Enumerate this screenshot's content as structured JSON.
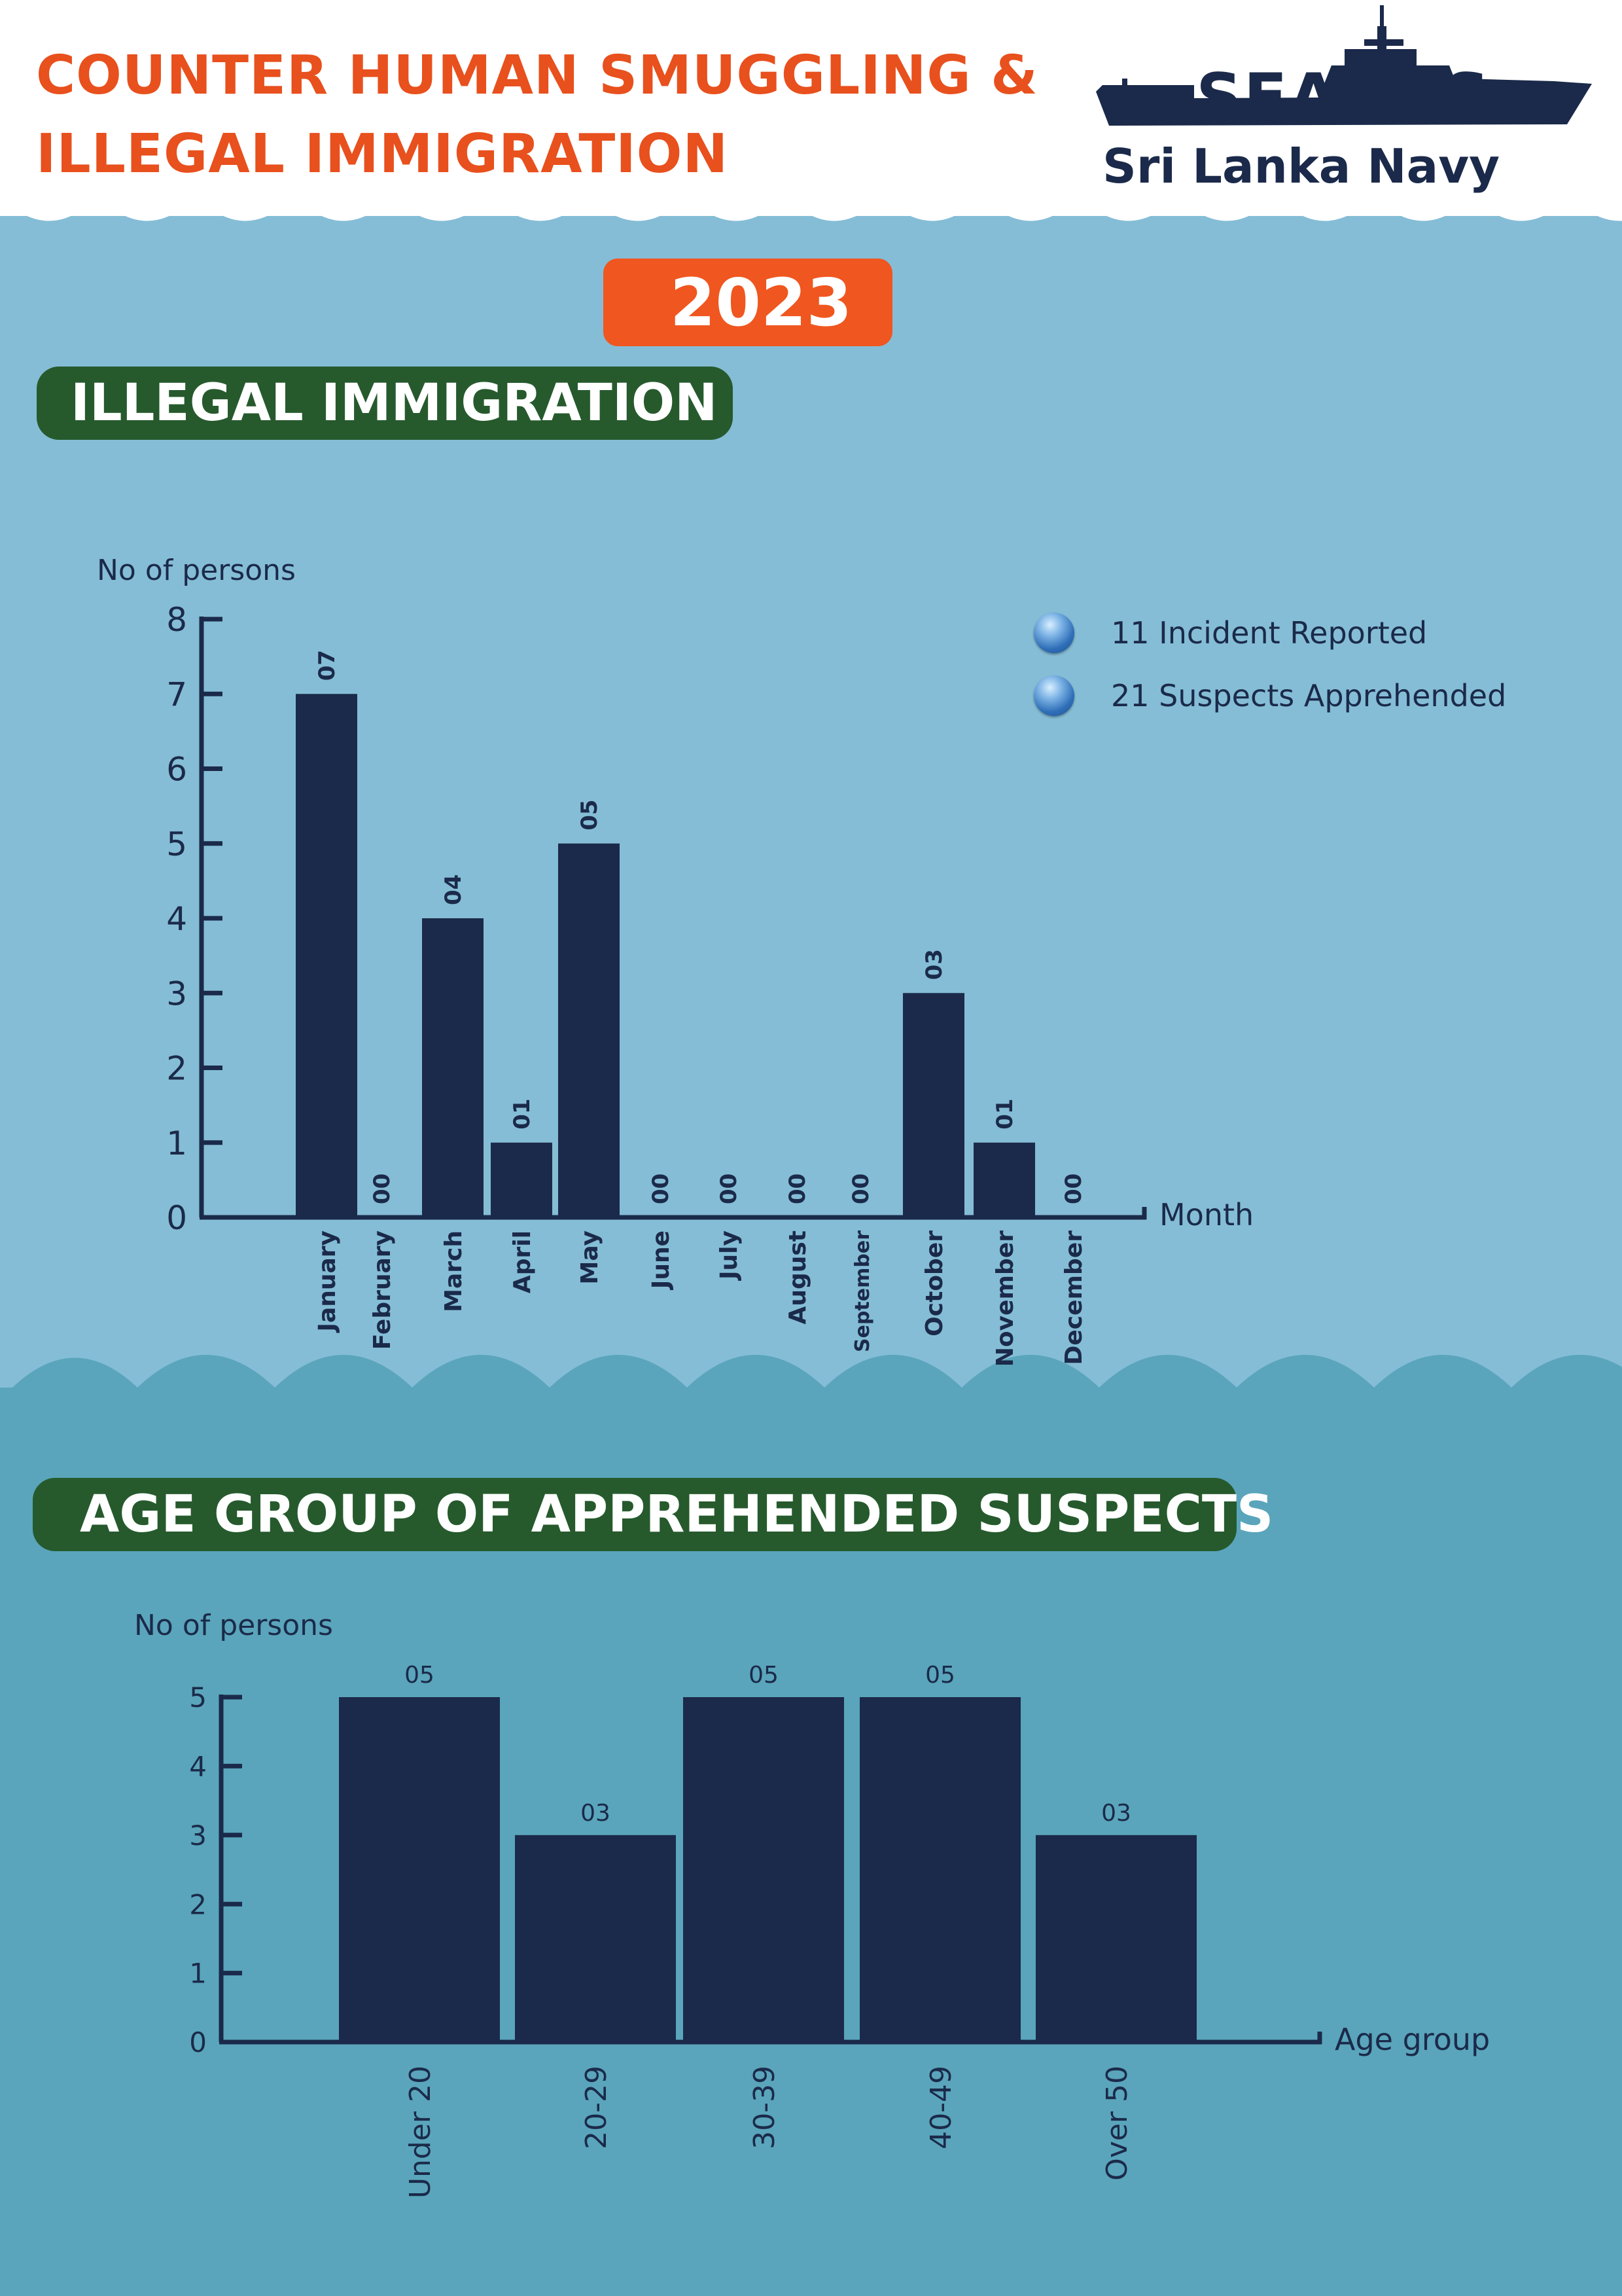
{
  "header": {
    "title_line1": "COUNTER HUMAN SMUGGLING  &",
    "title_line2": "ILLEGAL IMMIGRATION",
    "logo_word": "SEAOPS",
    "logo_subtitle": "Sri Lanka Navy",
    "logo_icon": "ship-silhouette-icon"
  },
  "year": "2023",
  "colors": {
    "title_orange": "#e8501d",
    "badge_orange": "#f0561f",
    "banner_green": "#265a2d",
    "navy": "#1b2a4a",
    "sea_light": "#85bdd6",
    "sea_dark": "#5aa5bb"
  },
  "section1": {
    "banner": "ILLEGAL IMMIGRATION",
    "legend": [
      {
        "icon": "blue-sphere-icon",
        "text": "11 Incident Reported"
      },
      {
        "icon": "blue-sphere-icon",
        "text": "21 Suspects Apprehended"
      }
    ]
  },
  "section2": {
    "banner": "AGE GROUP OF APPREHENDED SUSPECTS"
  },
  "chart_data": [
    {
      "type": "bar",
      "title": "ILLEGAL IMMIGRATION",
      "ylabel": "No of persons",
      "xlabel": "Month",
      "ylim": [
        0,
        8
      ],
      "yticks": [
        "0",
        "1",
        "2",
        "3",
        "4",
        "5",
        "6",
        "7",
        "8"
      ],
      "categories": [
        "January",
        "February",
        "March",
        "April",
        "May",
        "June",
        "July",
        "August",
        "September",
        "October",
        "November",
        "December"
      ],
      "values": [
        7,
        0,
        4,
        1,
        5,
        0,
        0,
        0,
        0,
        3,
        1,
        0
      ],
      "data_labels": [
        "07",
        "00",
        "04",
        "01",
        "05",
        "00",
        "00",
        "00",
        "00",
        "03",
        "01",
        "00"
      ]
    },
    {
      "type": "bar",
      "title": "AGE GROUP OF APPREHENDED SUSPECTS",
      "ylabel": "No of persons",
      "xlabel": "Age group",
      "ylim": [
        0,
        5
      ],
      "yticks": [
        "0",
        "1",
        "2",
        "3",
        "4",
        "5"
      ],
      "categories": [
        "Under 20",
        "20-29",
        "30-39",
        "40-49",
        "Over 50"
      ],
      "values": [
        5,
        3,
        5,
        5,
        3
      ],
      "data_labels": [
        "05",
        "03",
        "05",
        "05",
        "03"
      ]
    }
  ]
}
